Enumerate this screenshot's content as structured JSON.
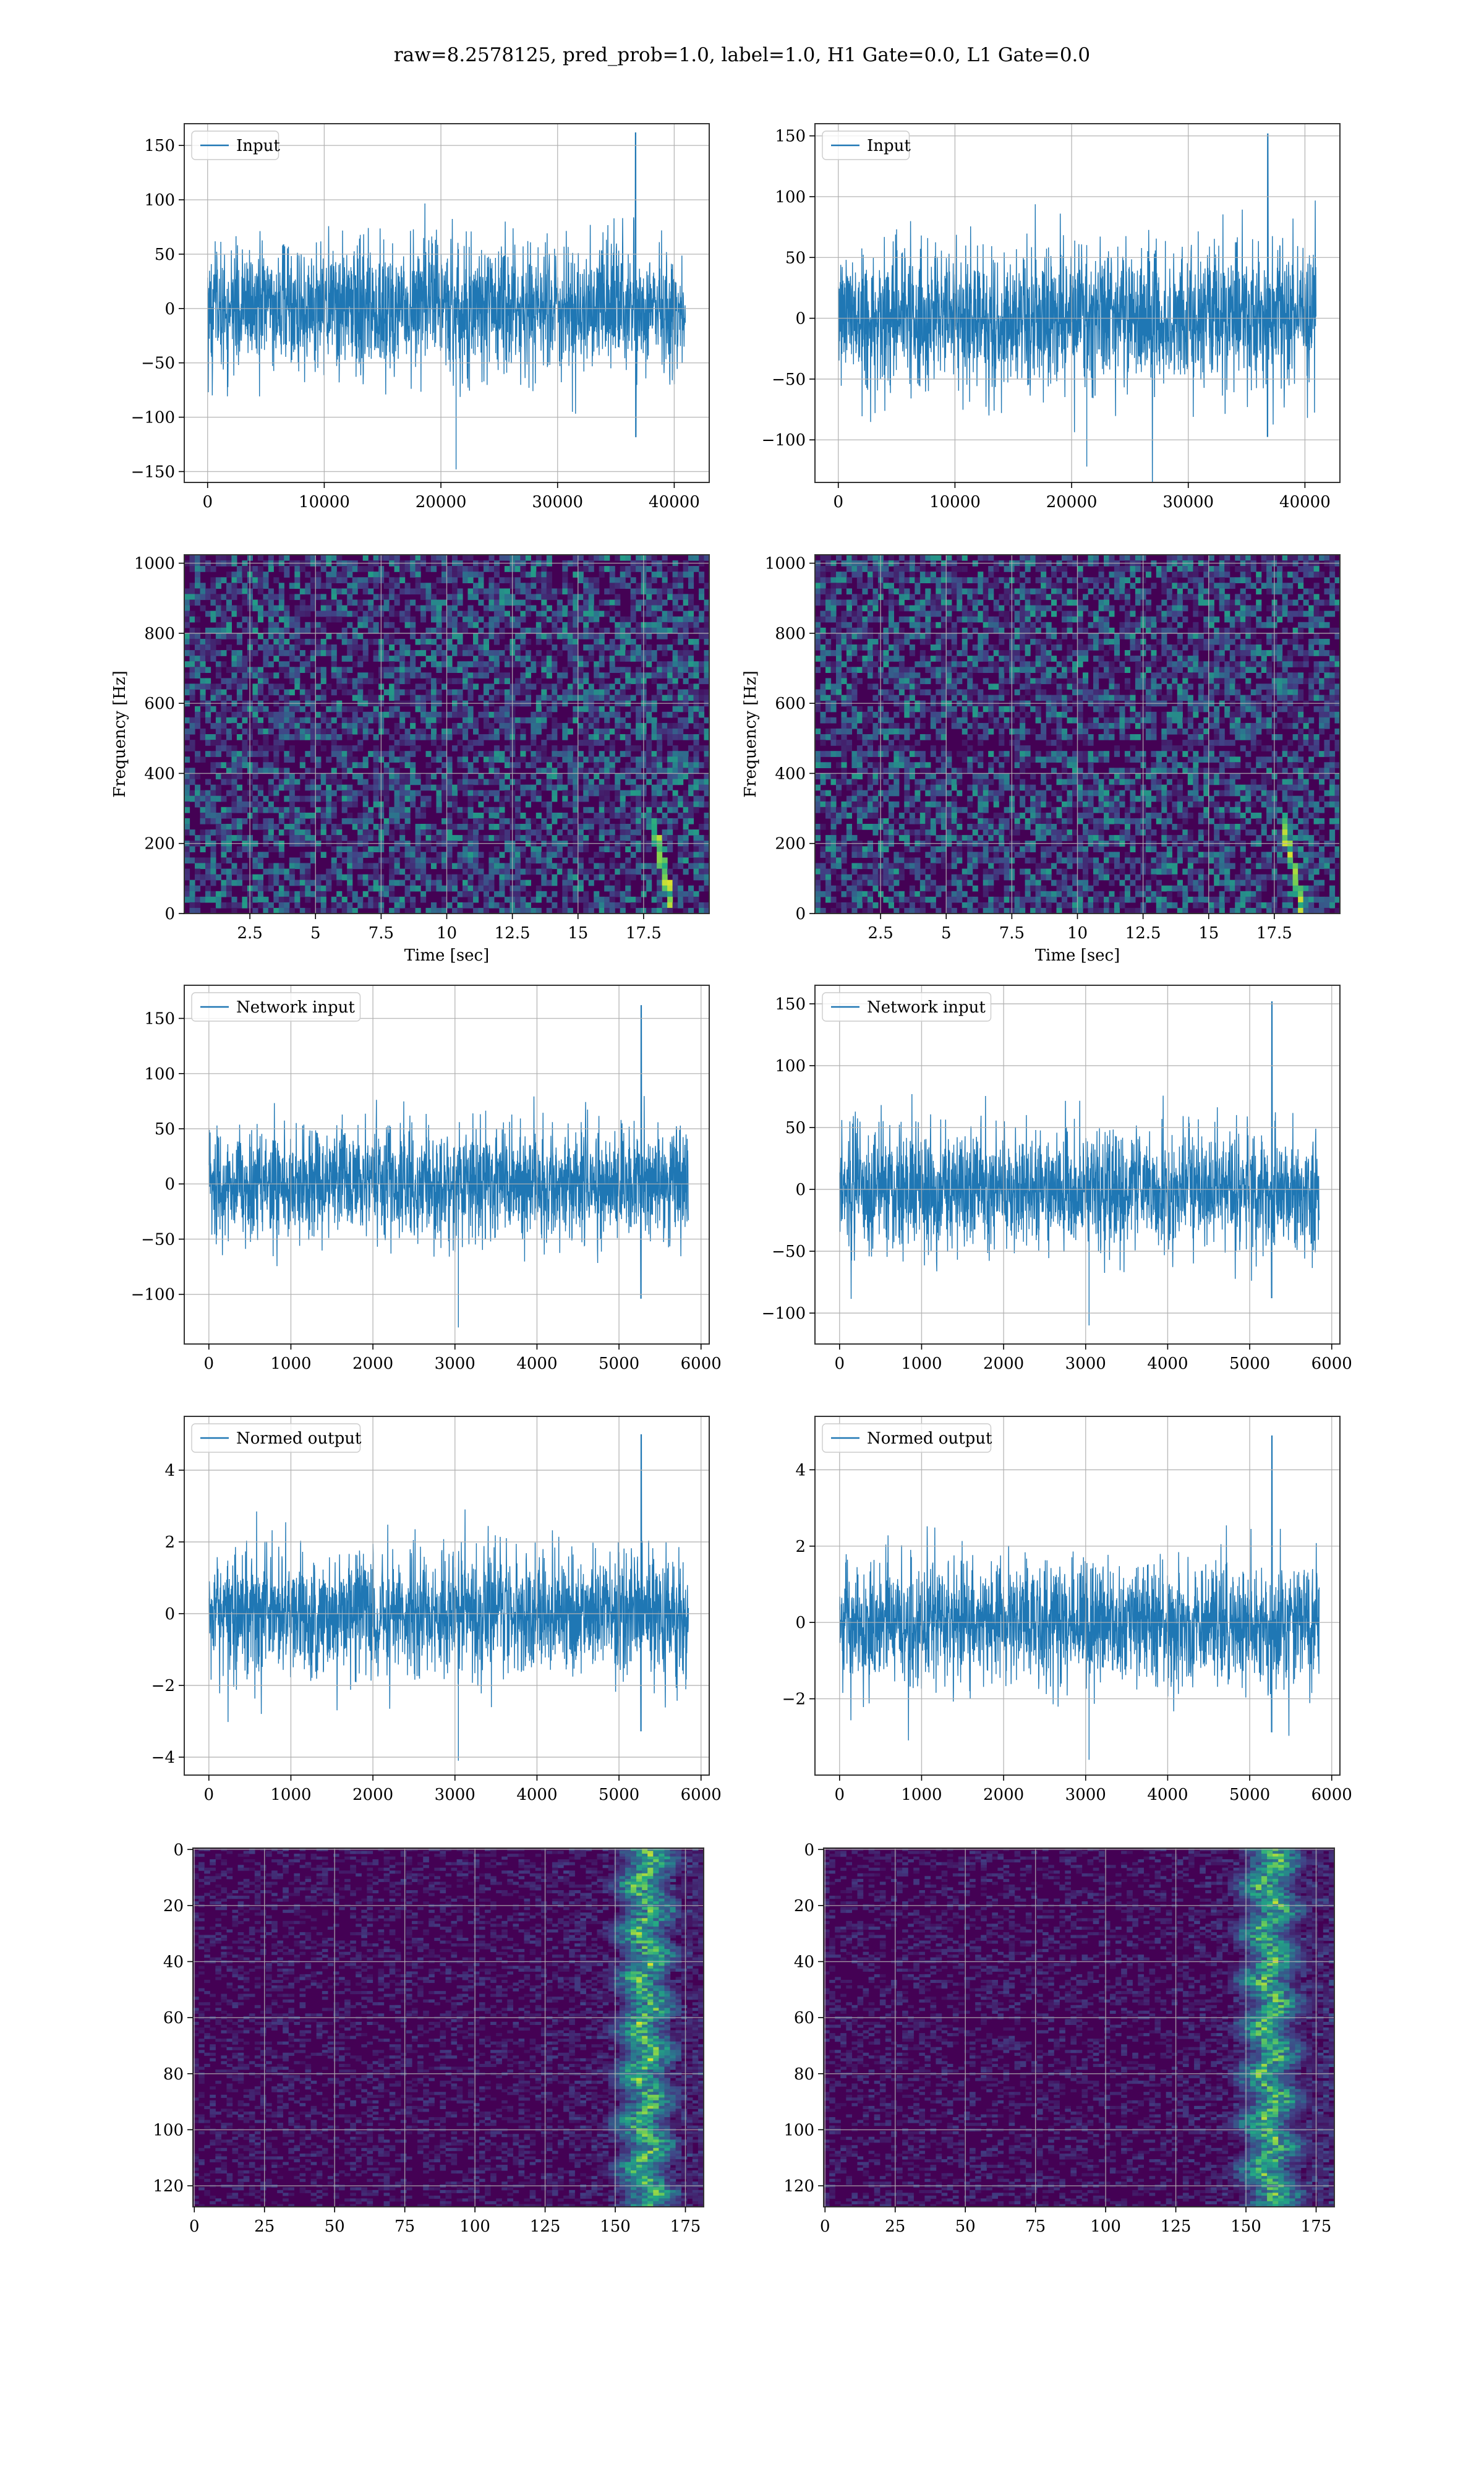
{
  "figure": {
    "title": "raw=8.2578125, pred_prob=1.0, label=1.0, H1 Gate=0.0, L1 Gate=0.0",
    "colors": {
      "series": "#1f77b4",
      "grid": "#b0b0b0",
      "viridis_low": "#440154",
      "viridis_mid": "#21918c",
      "viridis_high": "#fde725"
    }
  },
  "chart_data": [
    {
      "id": "input-h1",
      "type": "line",
      "legend": [
        "Input"
      ],
      "legend_loc": "upper left",
      "xlim": [
        -2000,
        43000
      ],
      "ylim": [
        -160,
        170
      ],
      "xticks": [
        0,
        10000,
        20000,
        30000,
        40000
      ],
      "yticks": [
        -150,
        -100,
        -50,
        0,
        50,
        100,
        150
      ],
      "grid": true,
      "series": [
        {
          "name": "Input",
          "n_samples": 40960,
          "envelope": [
            -70,
            70
          ],
          "max": 162,
          "min": -148,
          "peak_x": 36700
        }
      ]
    },
    {
      "id": "input-l1",
      "type": "line",
      "legend": [
        "Input"
      ],
      "legend_loc": "upper left",
      "xlim": [
        -2000,
        43000
      ],
      "ylim": [
        -135,
        160
      ],
      "xticks": [
        0,
        10000,
        20000,
        30000,
        40000
      ],
      "yticks": [
        -100,
        -50,
        0,
        50,
        100,
        150
      ],
      "grid": true,
      "series": [
        {
          "name": "Input",
          "n_samples": 40960,
          "envelope": [
            -68,
            68
          ],
          "max": 152,
          "min": -122,
          "peak_x": 36800
        }
      ]
    },
    {
      "id": "spectrogram-h1",
      "type": "heatmap",
      "xlabel": "Time [sec]",
      "ylabel": "Frequency [Hz]",
      "xlim": [
        0,
        20
      ],
      "ylim": [
        0,
        1024
      ],
      "xticks": [
        2.5,
        5.0,
        7.5,
        10.0,
        12.5,
        15.0,
        17.5
      ],
      "yticks": [
        0,
        200,
        400,
        600,
        800,
        1000
      ],
      "grid": true,
      "colormap": "viridis",
      "chirp": {
        "t_start": 17.8,
        "t_end": 18.6,
        "f_start": 260,
        "f_end": 30
      }
    },
    {
      "id": "spectrogram-l1",
      "type": "heatmap",
      "xlabel": "Time [sec]",
      "ylabel": "Frequency [Hz]",
      "xlim": [
        0,
        20
      ],
      "ylim": [
        0,
        1024
      ],
      "xticks": [
        2.5,
        5.0,
        7.5,
        10.0,
        12.5,
        15.0,
        17.5
      ],
      "yticks": [
        0,
        200,
        400,
        600,
        800,
        1000
      ],
      "grid": true,
      "colormap": "viridis",
      "chirp": {
        "t_start": 17.9,
        "t_end": 18.5,
        "f_start": 240,
        "f_end": 30
      }
    },
    {
      "id": "network-input-h1",
      "type": "line",
      "legend": [
        "Network input"
      ],
      "legend_loc": "upper left",
      "xlim": [
        -300,
        6100
      ],
      "ylim": [
        -145,
        180
      ],
      "xticks": [
        0,
        1000,
        2000,
        3000,
        4000,
        5000,
        6000
      ],
      "yticks": [
        -100,
        -50,
        0,
        50,
        100,
        150
      ],
      "grid": true,
      "series": [
        {
          "name": "Network input",
          "n_samples": 5850,
          "envelope": [
            -60,
            60
          ],
          "max": 162,
          "min": -130,
          "peak_x": 5270
        }
      ]
    },
    {
      "id": "network-input-l1",
      "type": "line",
      "legend": [
        "Network input"
      ],
      "legend_loc": "upper left",
      "xlim": [
        -300,
        6100
      ],
      "ylim": [
        -125,
        165
      ],
      "xticks": [
        0,
        1000,
        2000,
        3000,
        4000,
        5000,
        6000
      ],
      "yticks": [
        -100,
        -50,
        0,
        50,
        100,
        150
      ],
      "grid": true,
      "series": [
        {
          "name": "Network input",
          "n_samples": 5850,
          "envelope": [
            -55,
            55
          ],
          "max": 152,
          "min": -110,
          "peak_x": 5270
        }
      ]
    },
    {
      "id": "normed-output-h1",
      "type": "line",
      "legend": [
        "Normed output"
      ],
      "legend_loc": "upper left",
      "xlim": [
        -300,
        6100
      ],
      "ylim": [
        -4.5,
        5.5
      ],
      "xticks": [
        0,
        1000,
        2000,
        3000,
        4000,
        5000,
        6000
      ],
      "yticks": [
        -4,
        -2,
        0,
        2,
        4
      ],
      "grid": true,
      "series": [
        {
          "name": "Normed output",
          "n_samples": 5850,
          "envelope": [
            -2.0,
            2.0
          ],
          "max": 5.0,
          "min": -4.1,
          "peak_x": 5270
        }
      ]
    },
    {
      "id": "normed-output-l1",
      "type": "line",
      "legend": [
        "Normed output"
      ],
      "legend_loc": "upper left",
      "xlim": [
        -300,
        6100
      ],
      "ylim": [
        -4.0,
        5.4
      ],
      "xticks": [
        0,
        1000,
        2000,
        3000,
        4000,
        5000,
        6000
      ],
      "yticks": [
        -2,
        0,
        2,
        4
      ],
      "grid": true,
      "series": [
        {
          "name": "Normed output",
          "n_samples": 5850,
          "envelope": [
            -1.9,
            1.9
          ],
          "max": 4.9,
          "min": -3.6,
          "peak_x": 5270
        }
      ]
    },
    {
      "id": "feature-map-h1",
      "type": "heatmap",
      "xlim": [
        -0.5,
        181.5
      ],
      "ylim": [
        127.5,
        -0.5
      ],
      "xticks": [
        0,
        25,
        50,
        75,
        100,
        125,
        150,
        175
      ],
      "yticks": [
        0,
        20,
        40,
        60,
        80,
        100,
        120
      ],
      "grid": true,
      "colormap": "viridis",
      "shape": [
        128,
        182
      ],
      "active_band": [
        145,
        172
      ]
    },
    {
      "id": "feature-map-l1",
      "type": "heatmap",
      "xlim": [
        -0.5,
        181.5
      ],
      "ylim": [
        127.5,
        -0.5
      ],
      "xticks": [
        0,
        25,
        50,
        75,
        100,
        125,
        150,
        175
      ],
      "yticks": [
        0,
        20,
        40,
        60,
        80,
        100,
        120
      ],
      "grid": true,
      "colormap": "viridis",
      "shape": [
        128,
        182
      ],
      "active_band": [
        140,
        172
      ]
    }
  ]
}
